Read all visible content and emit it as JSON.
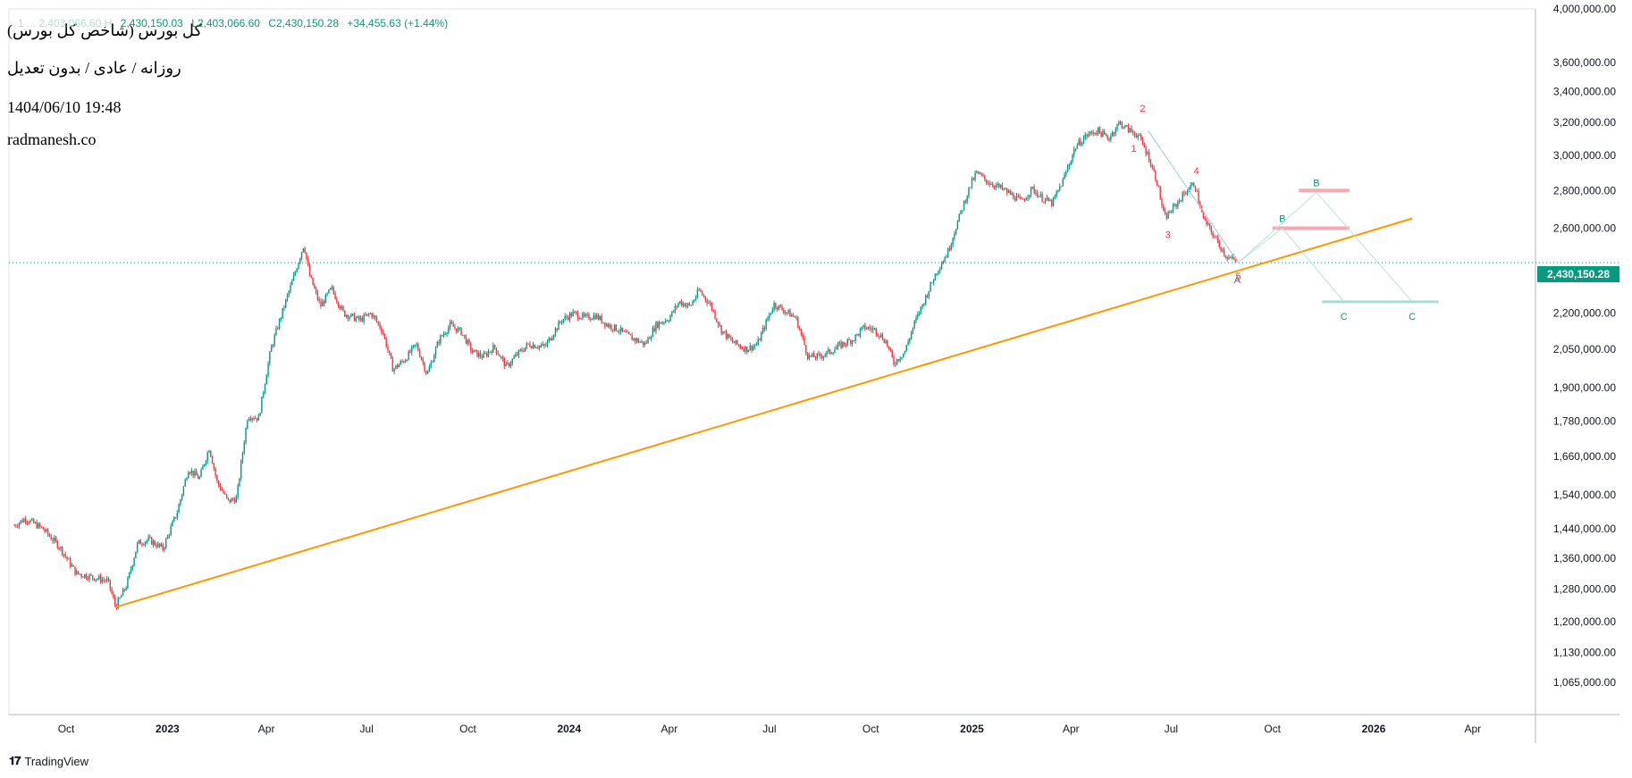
{
  "header": {
    "title": "کل بورس (شاخص کل بورس)",
    "subtitle": "روزانه / عادی / بدون تعدیل",
    "datetime": "1404/06/10 19:48",
    "site": "radmanesh.co"
  },
  "ohlc": {
    "faint": "1 ... 2,403,066.60 H",
    "high": "2,430,150.03",
    "low": "L2,403,066.60",
    "close": "C2,430,150.28",
    "change": "+34,455.63 (+1.44%)"
  },
  "branding": {
    "logo_text": "TradingView",
    "logo_icon": "tradingview-logo-icon"
  },
  "colors": {
    "up": "#089981",
    "down": "#f23645",
    "trendline": "#ff9800",
    "wave_label": "#f23645",
    "abc_label": "#089981",
    "resistance": "#f7a9b3",
    "support": "#a8dcd4"
  },
  "chart_data": {
    "type": "line",
    "title": "کل بورس (شاخص کل بورس)",
    "scale": "log",
    "ylim": [
      1000000,
      4000000
    ],
    "y_ticks": [
      "4,000,000.00",
      "3,600,000.00",
      "3,400,000.00",
      "3,200,000.00",
      "3,000,000.00",
      "2,800,000.00",
      "2,600,000.00",
      "2,200,000.00",
      "2,050,000.00",
      "1,900,000.00",
      "1,780,000.00",
      "1,660,000.00",
      "1,540,000.00",
      "1,440,000.00",
      "1,360,000.00",
      "1,280,000.00",
      "1,200,000.00",
      "1,130,000.00",
      "1,065,000.00"
    ],
    "x_ticks": [
      {
        "label": "Oct",
        "date": "2022-10-01",
        "bold": false
      },
      {
        "label": "2023",
        "date": "2023-01-01",
        "bold": true
      },
      {
        "label": "Apr",
        "date": "2023-04-01",
        "bold": false
      },
      {
        "label": "Jul",
        "date": "2023-07-01",
        "bold": false
      },
      {
        "label": "Oct",
        "date": "2023-10-01",
        "bold": false
      },
      {
        "label": "2024",
        "date": "2024-01-01",
        "bold": true
      },
      {
        "label": "Apr",
        "date": "2024-04-01",
        "bold": false
      },
      {
        "label": "Jul",
        "date": "2024-07-01",
        "bold": false
      },
      {
        "label": "Oct",
        "date": "2024-10-01",
        "bold": false
      },
      {
        "label": "2025",
        "date": "2025-01-01",
        "bold": true
      },
      {
        "label": "Apr",
        "date": "2025-04-01",
        "bold": false
      },
      {
        "label": "Jul",
        "date": "2025-07-01",
        "bold": false
      },
      {
        "label": "Oct",
        "date": "2025-10-01",
        "bold": false
      },
      {
        "label": "2026",
        "date": "2026-01-01",
        "bold": true
      },
      {
        "label": "Apr",
        "date": "2026-04-01",
        "bold": false
      }
    ],
    "last_price": 2430150.28,
    "last_price_label": "2,430,150.28",
    "series": [
      {
        "values": [
          [
            "2022-08-15",
            1450000
          ],
          [
            "2022-08-25",
            1470000
          ],
          [
            "2022-09-10",
            1440000
          ],
          [
            "2022-09-25",
            1390000
          ],
          [
            "2022-10-10",
            1320000
          ],
          [
            "2022-10-25",
            1310000
          ],
          [
            "2022-11-08",
            1300000
          ],
          [
            "2022-11-15",
            1235000
          ],
          [
            "2022-11-25",
            1290000
          ],
          [
            "2022-12-05",
            1400000
          ],
          [
            "2022-12-15",
            1410000
          ],
          [
            "2022-12-28",
            1385000
          ],
          [
            "2023-01-10",
            1490000
          ],
          [
            "2023-01-20",
            1620000
          ],
          [
            "2023-01-30",
            1590000
          ],
          [
            "2023-02-08",
            1690000
          ],
          [
            "2023-02-15",
            1580000
          ],
          [
            "2023-02-25",
            1520000
          ],
          [
            "2023-03-05",
            1530000
          ],
          [
            "2023-03-15",
            1800000
          ],
          [
            "2023-03-25",
            1790000
          ],
          [
            "2023-04-05",
            2050000
          ],
          [
            "2023-04-15",
            2200000
          ],
          [
            "2023-04-25",
            2350000
          ],
          [
            "2023-05-05",
            2520000
          ],
          [
            "2023-05-10",
            2370000
          ],
          [
            "2023-05-20",
            2230000
          ],
          [
            "2023-05-30",
            2310000
          ],
          [
            "2023-06-10",
            2200000
          ],
          [
            "2023-06-25",
            2170000
          ],
          [
            "2023-07-05",
            2200000
          ],
          [
            "2023-07-15",
            2130000
          ],
          [
            "2023-07-25",
            1970000
          ],
          [
            "2023-08-05",
            2010000
          ],
          [
            "2023-08-15",
            2070000
          ],
          [
            "2023-08-25",
            1950000
          ],
          [
            "2023-09-05",
            2090000
          ],
          [
            "2023-09-15",
            2150000
          ],
          [
            "2023-09-25",
            2120000
          ],
          [
            "2023-10-05",
            2040000
          ],
          [
            "2023-10-15",
            2020000
          ],
          [
            "2023-10-25",
            2060000
          ],
          [
            "2023-11-05",
            1980000
          ],
          [
            "2023-11-15",
            2030000
          ],
          [
            "2023-11-25",
            2070000
          ],
          [
            "2023-12-10",
            2060000
          ],
          [
            "2023-12-25",
            2170000
          ],
          [
            "2024-01-05",
            2200000
          ],
          [
            "2024-01-15",
            2180000
          ],
          [
            "2024-01-25",
            2190000
          ],
          [
            "2024-02-05",
            2150000
          ],
          [
            "2024-02-15",
            2130000
          ],
          [
            "2024-02-25",
            2100000
          ],
          [
            "2024-03-10",
            2070000
          ],
          [
            "2024-03-20",
            2150000
          ],
          [
            "2024-04-01",
            2180000
          ],
          [
            "2024-04-10",
            2250000
          ],
          [
            "2024-04-20",
            2230000
          ],
          [
            "2024-04-28",
            2300000
          ],
          [
            "2024-05-08",
            2240000
          ],
          [
            "2024-05-18",
            2130000
          ],
          [
            "2024-05-28",
            2080000
          ],
          [
            "2024-06-10",
            2050000
          ],
          [
            "2024-06-20",
            2070000
          ],
          [
            "2024-07-05",
            2240000
          ],
          [
            "2024-07-15",
            2210000
          ],
          [
            "2024-07-25",
            2180000
          ],
          [
            "2024-08-05",
            2020000
          ],
          [
            "2024-08-15",
            2020000
          ],
          [
            "2024-08-25",
            2040000
          ],
          [
            "2024-09-05",
            2070000
          ],
          [
            "2024-09-15",
            2090000
          ],
          [
            "2024-09-25",
            2140000
          ],
          [
            "2024-10-05",
            2130000
          ],
          [
            "2024-10-15",
            2080000
          ],
          [
            "2024-10-22",
            1995000
          ],
          [
            "2024-11-01",
            2040000
          ],
          [
            "2024-11-10",
            2160000
          ],
          [
            "2024-11-20",
            2270000
          ],
          [
            "2024-11-30",
            2390000
          ],
          [
            "2024-12-10",
            2480000
          ],
          [
            "2024-12-20",
            2650000
          ],
          [
            "2024-12-30",
            2820000
          ],
          [
            "2025-01-05",
            2900000
          ],
          [
            "2025-01-15",
            2850000
          ],
          [
            "2025-01-25",
            2820000
          ],
          [
            "2025-02-05",
            2780000
          ],
          [
            "2025-02-15",
            2740000
          ],
          [
            "2025-02-25",
            2810000
          ],
          [
            "2025-03-05",
            2760000
          ],
          [
            "2025-03-15",
            2730000
          ],
          [
            "2025-03-25",
            2860000
          ],
          [
            "2025-04-05",
            3050000
          ],
          [
            "2025-04-15",
            3120000
          ],
          [
            "2025-04-25",
            3150000
          ],
          [
            "2025-05-05",
            3100000
          ],
          [
            "2025-05-15",
            3200000
          ],
          [
            "2025-05-22",
            3160000
          ],
          [
            "2025-06-01",
            3120000
          ],
          [
            "2025-06-10",
            3000000
          ],
          [
            "2025-06-18",
            2850000
          ],
          [
            "2025-06-25",
            2650000
          ],
          [
            "2025-07-05",
            2720000
          ],
          [
            "2025-07-15",
            2800000
          ],
          [
            "2025-07-22",
            2840000
          ],
          [
            "2025-07-30",
            2650000
          ],
          [
            "2025-08-10",
            2550000
          ],
          [
            "2025-08-20",
            2460000
          ],
          [
            "2025-08-31",
            2430150
          ]
        ]
      }
    ],
    "trendline": [
      [
        "2022-11-15",
        1235000
      ],
      [
        "2026-02-05",
        2650000
      ]
    ],
    "waves": [
      {
        "label": "1",
        "date": "2025-05-28",
        "value": 3020000
      },
      {
        "label": "2",
        "date": "2025-06-05",
        "value": 3270000
      },
      {
        "label": "3",
        "date": "2025-06-28",
        "value": 2550000
      },
      {
        "label": "4",
        "date": "2025-07-24",
        "value": 2890000
      },
      {
        "label": "5",
        "date": "2025-08-31",
        "value": 2350000
      }
    ],
    "abc_paths": [
      {
        "points": [
          [
            "2025-08-31",
            2430000
          ],
          [
            "2025-10-10",
            2600000
          ],
          [
            "2025-12-05",
            2250000
          ]
        ],
        "label_b": "B",
        "label_c": "C"
      },
      {
        "points": [
          [
            "2025-08-31",
            2430000
          ],
          [
            "2025-11-10",
            2790000
          ],
          [
            "2026-02-05",
            2250000
          ]
        ],
        "label_b": "B",
        "label_c": "C"
      }
    ],
    "a_label": {
      "label": "A",
      "date": "2025-08-30",
      "value": 2350000
    },
    "resistance_zones": [
      {
        "from": "2025-10-25",
        "to": "2025-12-10",
        "value": 2800000
      },
      {
        "from": "2025-10-01",
        "to": "2025-12-10",
        "value": 2600000
      }
    ],
    "support_zone": {
      "from": "2025-11-15",
      "to": "2026-03-01",
      "value": 2250000
    },
    "decline_line": [
      [
        "2025-06-10",
        3150000
      ],
      [
        "2025-08-31",
        2430000
      ]
    ]
  }
}
